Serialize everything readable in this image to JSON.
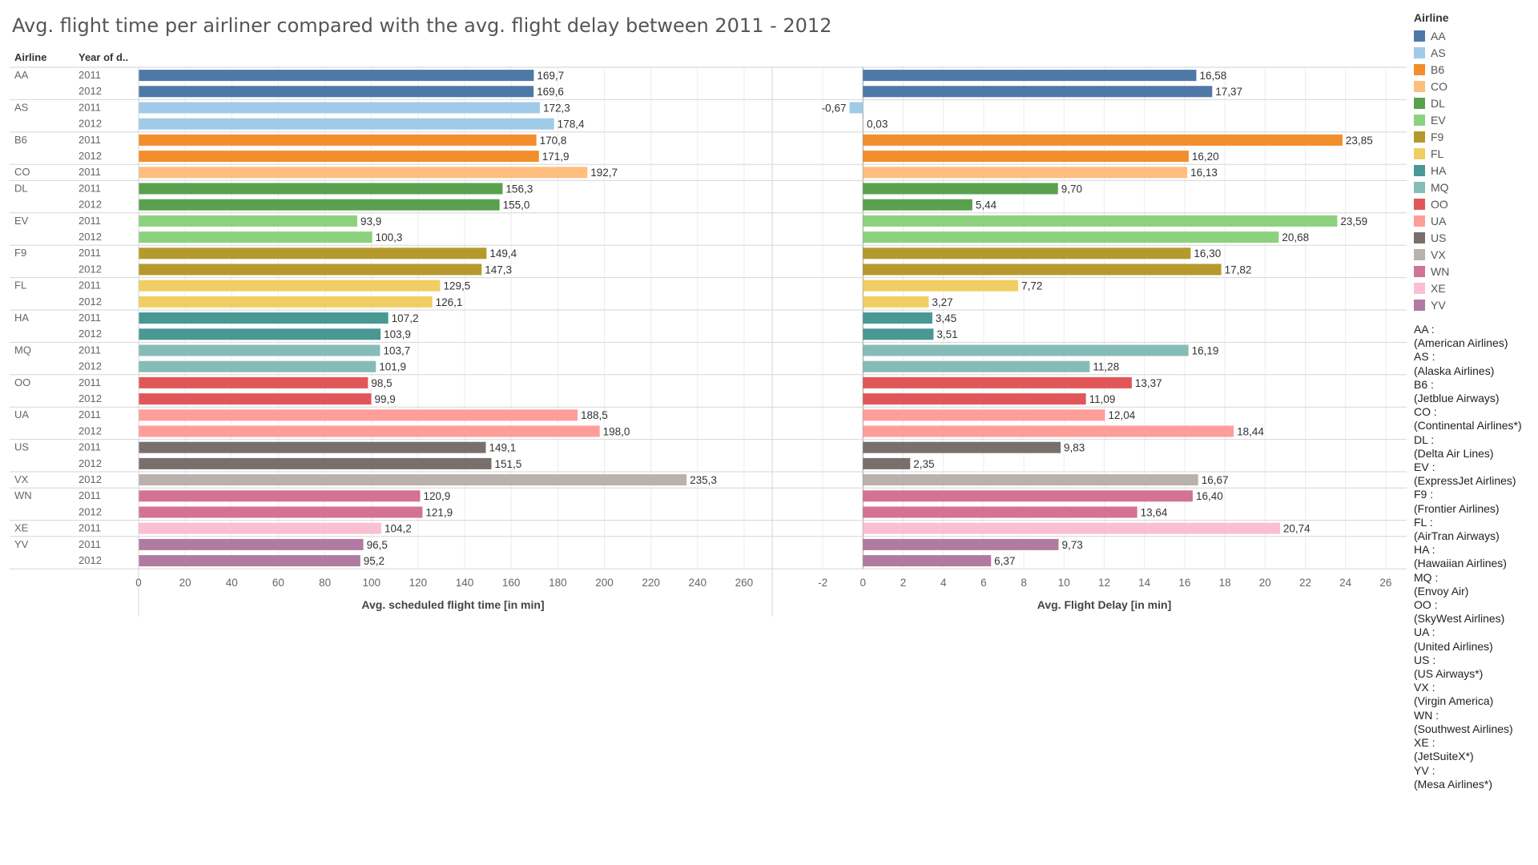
{
  "title": "Avg. flight time per airliner compared with the avg. flight delay between 2011 - 2012",
  "chart_data": {
    "type": "bar",
    "orientation": "horizontal",
    "row_headers": {
      "airline": "Airline",
      "year": "Year of d.."
    },
    "panels": [
      {
        "id": "flight_time",
        "xlabel": "Avg. scheduled flight time [in min]",
        "xlim": [
          0,
          270
        ],
        "ticks": [
          0,
          20,
          40,
          60,
          80,
          100,
          120,
          140,
          160,
          180,
          200,
          220,
          240,
          260
        ]
      },
      {
        "id": "delay",
        "xlabel": "Avg. Flight Delay [in min]",
        "xlim": [
          -3,
          27
        ],
        "ticks": [
          -2,
          0,
          2,
          4,
          6,
          8,
          10,
          12,
          14,
          16,
          18,
          20,
          22,
          24,
          26
        ]
      }
    ],
    "groups": [
      {
        "airline": "AA",
        "color": "#4e79a7",
        "rows": [
          {
            "year": "2011",
            "flight_time": 169.7,
            "flight_time_label": "169,7",
            "delay": 16.58,
            "delay_label": "16,58"
          },
          {
            "year": "2012",
            "flight_time": 169.6,
            "flight_time_label": "169,6",
            "delay": 17.37,
            "delay_label": "17,37"
          }
        ]
      },
      {
        "airline": "AS",
        "color": "#a0cbe8",
        "rows": [
          {
            "year": "2011",
            "flight_time": 172.3,
            "flight_time_label": "172,3",
            "delay": -0.67,
            "delay_label": "-0,67"
          },
          {
            "year": "2012",
            "flight_time": 178.4,
            "flight_time_label": "178,4",
            "delay": 0.03,
            "delay_label": "0,03"
          }
        ]
      },
      {
        "airline": "B6",
        "color": "#f28e2b",
        "rows": [
          {
            "year": "2011",
            "flight_time": 170.8,
            "flight_time_label": "170,8",
            "delay": 23.85,
            "delay_label": "23,85"
          },
          {
            "year": "2012",
            "flight_time": 171.9,
            "flight_time_label": "171,9",
            "delay": 16.2,
            "delay_label": "16,20"
          }
        ]
      },
      {
        "airline": "CO",
        "color": "#ffbe7d",
        "rows": [
          {
            "year": "2011",
            "flight_time": 192.7,
            "flight_time_label": "192,7",
            "delay": 16.13,
            "delay_label": "16,13"
          }
        ]
      },
      {
        "airline": "DL",
        "color": "#59a14f",
        "rows": [
          {
            "year": "2011",
            "flight_time": 156.3,
            "flight_time_label": "156,3",
            "delay": 9.7,
            "delay_label": "9,70"
          },
          {
            "year": "2012",
            "flight_time": 155.0,
            "flight_time_label": "155,0",
            "delay": 5.44,
            "delay_label": "5,44"
          }
        ]
      },
      {
        "airline": "EV",
        "color": "#8cd17d",
        "rows": [
          {
            "year": "2011",
            "flight_time": 93.9,
            "flight_time_label": "93,9",
            "delay": 23.59,
            "delay_label": "23,59"
          },
          {
            "year": "2012",
            "flight_time": 100.3,
            "flight_time_label": "100,3",
            "delay": 20.68,
            "delay_label": "20,68"
          }
        ]
      },
      {
        "airline": "F9",
        "color": "#b6992d",
        "rows": [
          {
            "year": "2011",
            "flight_time": 149.4,
            "flight_time_label": "149,4",
            "delay": 16.3,
            "delay_label": "16,30"
          },
          {
            "year": "2012",
            "flight_time": 147.3,
            "flight_time_label": "147,3",
            "delay": 17.82,
            "delay_label": "17,82"
          }
        ]
      },
      {
        "airline": "FL",
        "color": "#f1ce63",
        "rows": [
          {
            "year": "2011",
            "flight_time": 129.5,
            "flight_time_label": "129,5",
            "delay": 7.72,
            "delay_label": "7,72"
          },
          {
            "year": "2012",
            "flight_time": 126.1,
            "flight_time_label": "126,1",
            "delay": 3.27,
            "delay_label": "3,27"
          }
        ]
      },
      {
        "airline": "HA",
        "color": "#499894",
        "rows": [
          {
            "year": "2011",
            "flight_time": 107.2,
            "flight_time_label": "107,2",
            "delay": 3.45,
            "delay_label": "3,45"
          },
          {
            "year": "2012",
            "flight_time": 103.9,
            "flight_time_label": "103,9",
            "delay": 3.51,
            "delay_label": "3,51"
          }
        ]
      },
      {
        "airline": "MQ",
        "color": "#86bcb6",
        "rows": [
          {
            "year": "2011",
            "flight_time": 103.7,
            "flight_time_label": "103,7",
            "delay": 16.19,
            "delay_label": "16,19"
          },
          {
            "year": "2012",
            "flight_time": 101.9,
            "flight_time_label": "101,9",
            "delay": 11.28,
            "delay_label": "11,28"
          }
        ]
      },
      {
        "airline": "OO",
        "color": "#e15759",
        "rows": [
          {
            "year": "2011",
            "flight_time": 98.5,
            "flight_time_label": "98,5",
            "delay": 13.37,
            "delay_label": "13,37"
          },
          {
            "year": "2012",
            "flight_time": 99.9,
            "flight_time_label": "99,9",
            "delay": 11.09,
            "delay_label": "11,09"
          }
        ]
      },
      {
        "airline": "UA",
        "color": "#ff9d9a",
        "rows": [
          {
            "year": "2011",
            "flight_time": 188.5,
            "flight_time_label": "188,5",
            "delay": 12.04,
            "delay_label": "12,04"
          },
          {
            "year": "2012",
            "flight_time": 198.0,
            "flight_time_label": "198,0",
            "delay": 18.44,
            "delay_label": "18,44"
          }
        ]
      },
      {
        "airline": "US",
        "color": "#79706e",
        "rows": [
          {
            "year": "2011",
            "flight_time": 149.1,
            "flight_time_label": "149,1",
            "delay": 9.83,
            "delay_label": "9,83"
          },
          {
            "year": "2012",
            "flight_time": 151.5,
            "flight_time_label": "151,5",
            "delay": 2.35,
            "delay_label": "2,35"
          }
        ]
      },
      {
        "airline": "VX",
        "color": "#bab0ac",
        "rows": [
          {
            "year": "2012",
            "flight_time": 235.3,
            "flight_time_label": "235,3",
            "delay": 16.67,
            "delay_label": "16,67"
          }
        ]
      },
      {
        "airline": "WN",
        "color": "#d37295",
        "rows": [
          {
            "year": "2011",
            "flight_time": 120.9,
            "flight_time_label": "120,9",
            "delay": 16.4,
            "delay_label": "16,40"
          },
          {
            "year": "2012",
            "flight_time": 121.9,
            "flight_time_label": "121,9",
            "delay": 13.64,
            "delay_label": "13,64"
          }
        ]
      },
      {
        "airline": "XE",
        "color": "#fabfd2",
        "rows": [
          {
            "year": "2011",
            "flight_time": 104.2,
            "flight_time_label": "104,2",
            "delay": 20.74,
            "delay_label": "20,74"
          }
        ]
      },
      {
        "airline": "YV",
        "color": "#b07aa1",
        "rows": [
          {
            "year": "2011",
            "flight_time": 96.5,
            "flight_time_label": "96,5",
            "delay": 9.73,
            "delay_label": "9,73"
          },
          {
            "year": "2012",
            "flight_time": 95.2,
            "flight_time_label": "95,2",
            "delay": 6.37,
            "delay_label": "6,37"
          }
        ]
      }
    ],
    "legend": {
      "title": "Airline",
      "placement": "right",
      "items": [
        {
          "label": "AA",
          "color": "#4e79a7"
        },
        {
          "label": "AS",
          "color": "#a0cbe8"
        },
        {
          "label": "B6",
          "color": "#f28e2b"
        },
        {
          "label": "CO",
          "color": "#ffbe7d"
        },
        {
          "label": "DL",
          "color": "#59a14f"
        },
        {
          "label": "EV",
          "color": "#8cd17d"
        },
        {
          "label": "F9",
          "color": "#b6992d"
        },
        {
          "label": "FL",
          "color": "#f1ce63"
        },
        {
          "label": "HA",
          "color": "#499894"
        },
        {
          "label": "MQ",
          "color": "#86bcb6"
        },
        {
          "label": "OO",
          "color": "#e15759"
        },
        {
          "label": "UA",
          "color": "#ff9d9a"
        },
        {
          "label": "US",
          "color": "#79706e"
        },
        {
          "label": "VX",
          "color": "#bab0ac"
        },
        {
          "label": "WN",
          "color": "#d37295"
        },
        {
          "label": "XE",
          "color": "#fabfd2"
        },
        {
          "label": "YV",
          "color": "#b07aa1"
        }
      ]
    },
    "notes": [
      {
        "code": "AA :",
        "name": "(American Airlines)"
      },
      {
        "code": "AS :",
        "name": "(Alaska Airlines)"
      },
      {
        "code": "B6 :",
        "name": "(Jetblue Airways)"
      },
      {
        "code": "CO :",
        "name": "(Continental Airlines*)"
      },
      {
        "code": "DL :",
        "name": "(Delta Air Lines)"
      },
      {
        "code": "EV :",
        "name": "(ExpressJet Airlines)"
      },
      {
        "code": "F9 :",
        "name": "(Frontier Airlines)"
      },
      {
        "code": "FL :",
        "name": "(AirTran Airways)"
      },
      {
        "code": "HA :",
        "name": "(Hawaiian Airlines)"
      },
      {
        "code": "MQ :",
        "name": "(Envoy Air)"
      },
      {
        "code": "OO :",
        "name": "(SkyWest Airlines)"
      },
      {
        "code": "UA :",
        "name": "(United Airlines)"
      },
      {
        "code": "US :",
        "name": "(US Airways*)"
      },
      {
        "code": "VX :",
        "name": "(Virgin America)"
      },
      {
        "code": "WN :",
        "name": "(Southwest Airlines)"
      },
      {
        "code": "XE :",
        "name": "(JetSuiteX*)"
      },
      {
        "code": "YV :",
        "name": "(Mesa Airlines*)"
      }
    ]
  }
}
